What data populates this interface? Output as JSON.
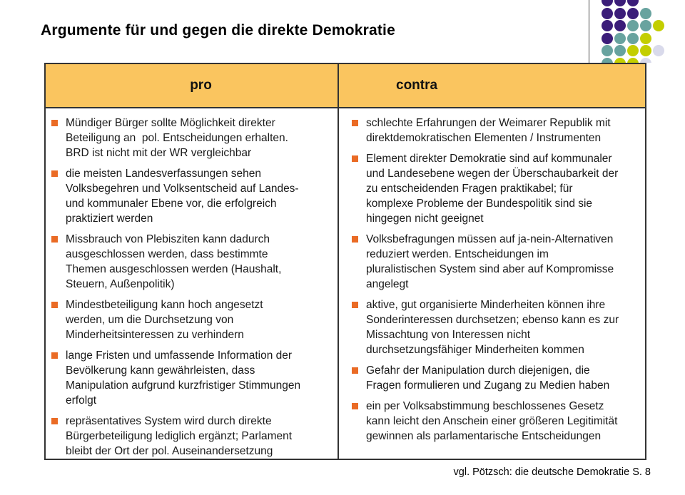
{
  "slide": {
    "title": "Argumente für und gegen die direkte Demokratie",
    "footer": "vgl. Pötzsch: die deutsche Demokratie S. 8"
  },
  "table": {
    "columns": [
      {
        "header": "pro",
        "items": [
          "Mündiger Bürger sollte Möglichkeit direkter\nBeteiligung an  pol. Entscheidungen erhalten.\nBRD ist nicht mit der WR vergleichbar",
          "die meisten Landesverfassungen sehen\nVolksbegehren und Volksentscheid auf Landes-\nund kommunaler Ebene vor, die erfolgreich\npraktiziert werden",
          "Missbrauch von Plebisziten kann dadurch\nausgeschlossen werden, dass bestimmte\nThemen ausgeschlossen werden (Haushalt,\nSteuern, Außenpolitik)",
          "Mindestbeteiligung kann hoch angesetzt\nwerden, um die Durchsetzung von\nMinderheitsinteressen zu verhindern",
          "lange Fristen und umfassende Information der\nBevölkerung kann gewährleisten, dass\nManipulation aufgrund kurzfristiger Stimmungen\nerfolgt",
          "repräsentatives System wird durch direkte\nBürgerbeteiligung lediglich ergänzt; Parlament\nbleibt der Ort der pol. Auseinandersetzung"
        ]
      },
      {
        "header": "contra",
        "items": [
          "schlechte Erfahrungen der Weimarer Republik mit\ndirektdemokratischen Elementen / Instrumenten",
          "Element direkter Demokratie sind auf kommunaler\nund Landesebene wegen der Überschaubarkeit der\nzu entscheidenden Fragen praktikabel; für\nkomplexe Probleme der Bundespolitik sind sie\nhingegen nicht geeignet",
          "Volksbefragungen müssen auf ja-nein-Alternativen\nreduziert werden. Entscheidungen im\npluralistischen System sind aber auf Kompromisse\nangelegt",
          "aktive, gut organisierte Minderheiten können ihre\nSonderinteressen durchsetzen; ebenso kann es zur\nMissachtung von Interessen nicht\ndurchsetzungsfähiger Minderheiten kommen",
          "Gefahr der Manipulation durch diejenigen, die\nFragen formulieren und Zugang zu Medien haben",
          "ein per Volksabstimmung beschlossenes Gesetz\nkann leicht den Anschein einer größeren Legitimität\ngewinnen als parlamentarische Entscheidungen"
        ]
      }
    ]
  },
  "decoration": {
    "dot_colors": {
      "P": "#3B1D79",
      "T": "#68A39F",
      "Y": "#C3CE00",
      "L": "#D9DAEB"
    },
    "dot_rows": [
      [
        "P",
        "P",
        "P",
        "",
        ""
      ],
      [
        "P",
        "P",
        "P",
        "T",
        ""
      ],
      [
        "P",
        "P",
        "T",
        "T",
        "Y"
      ],
      [
        "P",
        "T",
        "T",
        "Y",
        ""
      ],
      [
        "T",
        "T",
        "Y",
        "Y",
        "L"
      ],
      [
        "T",
        "Y",
        "Y",
        "L",
        ""
      ]
    ]
  },
  "colors": {
    "header_bg": "#FAC55F",
    "bullet": "#EA6B25",
    "border": "#333333"
  }
}
